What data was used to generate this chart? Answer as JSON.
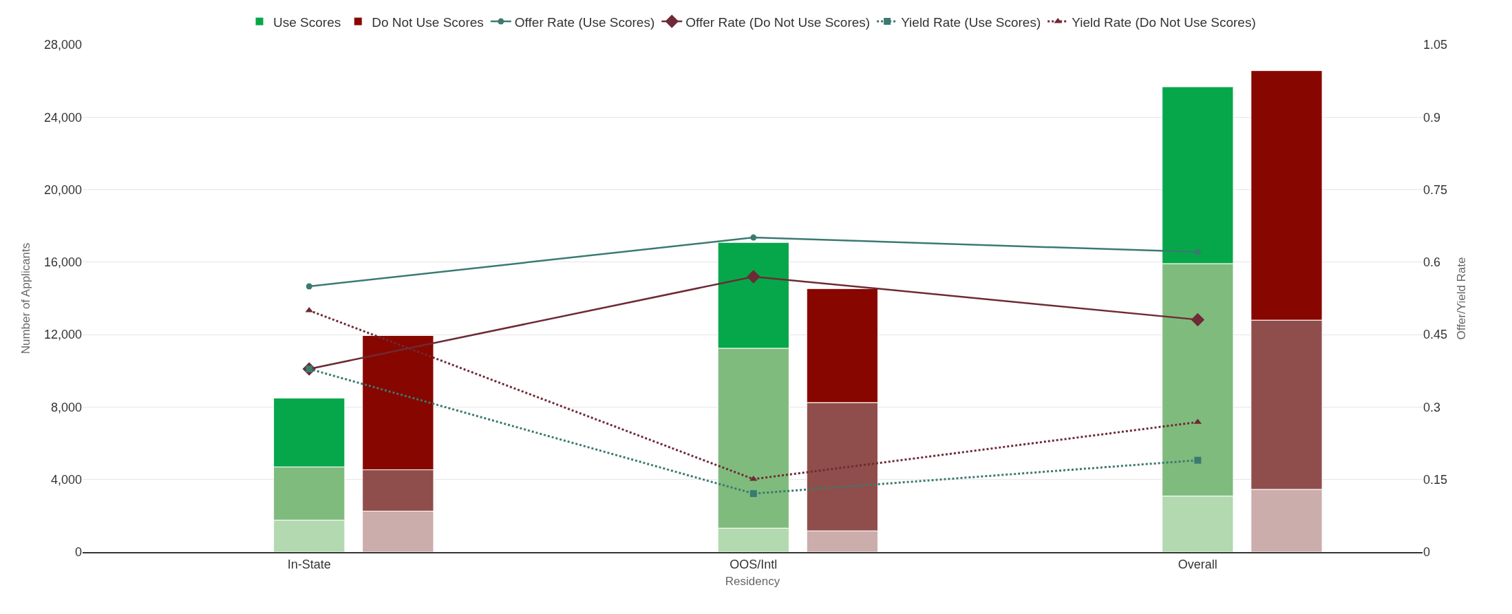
{
  "chart_data": {
    "type": "bar",
    "xlabel": "Residency",
    "ylabel": "Number of Applicants",
    "y2label": "Offer/Yield Rate",
    "categories": [
      "In-State",
      "OOS/Intl",
      "Overall"
    ],
    "series": [
      {
        "color": "#b2d9b0",
        "base": [
          0,
          0,
          0
        ],
        "values": [
          1760,
          1320,
          3090
        ]
      },
      {
        "color": "#80bb7e",
        "base": [
          1760,
          1320,
          3090
        ],
        "values": [
          2940,
          9930,
          12830
        ]
      },
      {
        "name": "Use Scores",
        "color": "#06a74a",
        "base": [
          4700,
          11250,
          15920
        ],
        "values": [
          3800,
          5840,
          9760
        ]
      },
      {
        "color": "#cbadac",
        "base": [
          0,
          0,
          0
        ],
        "values": [
          2260,
          1170,
          3460
        ]
      },
      {
        "color": "#8f4e4b",
        "base": [
          2260,
          1170,
          3460
        ],
        "values": [
          2280,
          7080,
          9340
        ]
      },
      {
        "name": "Do Not Use Scores",
        "color": "#880600",
        "base": [
          4540,
          8250,
          12800
        ],
        "values": [
          7410,
          6290,
          13770
        ]
      },
      {
        "type": "line",
        "axis": "y2",
        "name": "Offer Rate (Use Scores)",
        "color": "#3a7a70",
        "marker": "circle",
        "line_style": "solid",
        "values": [
          0.55,
          0.651,
          0.621
        ]
      },
      {
        "type": "line",
        "axis": "y2",
        "name": "Offer Rate (Do Not Use Scores)",
        "color": "#6e2a35",
        "marker": "diamond",
        "line_style": "solid",
        "values": [
          0.379,
          0.57,
          0.481
        ]
      },
      {
        "type": "line",
        "axis": "y2",
        "name": "Yield Rate (Use Scores)",
        "color": "#3a7a70",
        "marker": "square",
        "line_style": "dotted",
        "values": [
          0.379,
          0.121,
          0.19
        ]
      },
      {
        "type": "line",
        "axis": "y2",
        "name": "Yield Rate (Do Not Use Scores)",
        "color": "#6e2a35",
        "marker": "triangle",
        "line_style": "dotted",
        "values": [
          0.5,
          0.151,
          0.269
        ]
      }
    ],
    "ylim": [
      0,
      28000
    ],
    "yticks": [
      0,
      {
        "value": 4000,
        "label": "4,000"
      },
      {
        "value": 8000,
        "label": "8,000"
      },
      {
        "value": 12000,
        "label": "12,000"
      },
      {
        "value": 16000,
        "label": "16,000"
      },
      {
        "value": 20000,
        "label": "20,000"
      },
      {
        "value": 24000,
        "label": "24,000"
      },
      {
        "value": 28000,
        "label": "28,000"
      }
    ],
    "y2lim": [
      0,
      1.05
    ],
    "y2ticks": [
      0,
      0.15,
      0.3,
      0.45,
      0.6,
      0.75,
      0.9,
      1.05
    ],
    "grid": "y",
    "legend": "top"
  }
}
